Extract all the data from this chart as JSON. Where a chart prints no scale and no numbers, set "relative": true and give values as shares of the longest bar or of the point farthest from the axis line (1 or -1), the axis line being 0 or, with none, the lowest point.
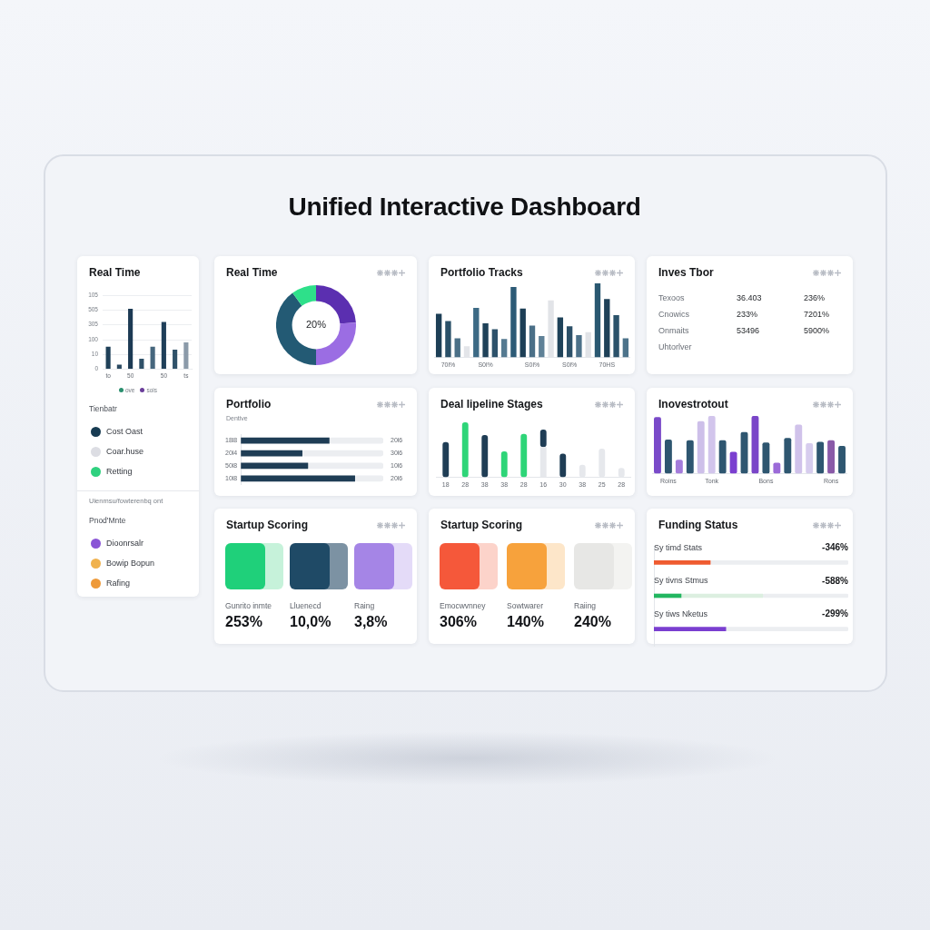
{
  "chart_data": [
    {
      "type": "other",
      "title": "Unified Interactive Dashboard"
    },
    {
      "type": "bar",
      "title": "Real Time",
      "relative": true,
      "categories": [
        "to",
        null,
        "50",
        null,
        null,
        "50",
        null,
        "ts"
      ],
      "values": [
        0.37,
        0.07,
        1,
        0.17,
        0.37,
        0.78,
        0.32,
        0.44
      ],
      "colors": [
        "#1f4058",
        "#2b4a62",
        "#1c3a54",
        "#2e5068",
        "#46667d",
        "#1f3f59",
        "#2f5169",
        "#8b9aa9"
      ],
      "grid": "y",
      "annotations": [
        "105",
        "505",
        "305",
        "100",
        "10",
        "0"
      ]
    },
    {
      "type": "other",
      "categories": [
        "ove",
        "sois"
      ],
      "colors": [
        "#2a8f6e",
        "#6a3d9a"
      ]
    },
    {
      "type": "other",
      "title": "Tienbatr",
      "categories": [
        "Cost Oast",
        "Coar.huse",
        "Retting"
      ],
      "colors": [
        "#173b52",
        "#dcdde3",
        "#2fd17f"
      ]
    },
    {
      "type": "other",
      "title": "Pnod'Mnte",
      "annotations": [
        "Uienmsu/fowterenbq ont"
      ],
      "categories": [
        "Dioonrsalr",
        "Bowip Bopun",
        "Rafing"
      ],
      "colors": [
        "#8a55d6",
        "#f0b24e",
        "#ee9a3a"
      ]
    },
    {
      "type": "donut",
      "title": "Real Time",
      "categories": [
        null,
        null,
        null,
        null
      ],
      "values": [
        24,
        26,
        40,
        10
      ],
      "colors": [
        "#5b2fb0",
        "#9b6de3",
        "#235a74",
        "#2ee08a"
      ],
      "annotations": [
        "20%"
      ]
    },
    {
      "type": "bar",
      "title": "Portfolio Tracks",
      "relative": true,
      "categories": [
        null,
        "70l%",
        null,
        null,
        null,
        "S0l%",
        null,
        null,
        null,
        null,
        "S0l%",
        null,
        null,
        null,
        "S0l%",
        null,
        null,
        null,
        "70HS",
        null,
        null
      ],
      "values": [
        0.59,
        0.49,
        0.26,
        0.15,
        0.67,
        0.46,
        0.38,
        0.25,
        0.95,
        0.66,
        0.43,
        0.29,
        0.77,
        0.54,
        0.42,
        0.3,
        0.34,
        1,
        0.79,
        0.57,
        0.26
      ],
      "colors": [
        "#1d3f56",
        "#2a5068",
        "#4b7087",
        "#e3e5e9",
        "#3d6a85",
        "#1f4259",
        "#2d526b",
        "#557a91",
        "#2c5a76",
        "#1d3f56",
        "#4a6f87",
        "#5f8197",
        "#e2e4e8",
        "#1f4259",
        "#2c5068",
        "#4d7189",
        "#e1e3e7",
        "#2a5871",
        "#1e4158",
        "#2b526a",
        "#4d738a"
      ]
    },
    {
      "type": "other",
      "title": "Inves Tbor",
      "annotations": [
        "Texoos",
        "36.403",
        "236%",
        "Cnowics",
        "233%",
        "7201%",
        "Onmaits",
        "53496",
        "5900%",
        "Uhtorlver"
      ]
    },
    {
      "type": "bar",
      "title": "Portfolio",
      "subtitle": "Dentive",
      "orientation": "horizontal",
      "stacked": true,
      "relative": true,
      "categories": [
        "18l8",
        "20l4",
        "50l8",
        "10l8"
      ],
      "series": [
        {
          "color": "#1f3d55",
          "values": [
            0.62,
            0.43,
            0.47,
            0.8
          ]
        },
        {
          "color": "#eceef1",
          "values": [
            0.38,
            0.57,
            0.53,
            0.2
          ]
        }
      ],
      "annotations": [
        "20l6",
        "30l6",
        "10l6",
        "20l6"
      ]
    },
    {
      "type": "bar",
      "title": "Deal Iipeline Stages",
      "relative": true,
      "stacked": true,
      "categories": [
        "18",
        "28",
        "38",
        "38",
        "28",
        "16",
        "30",
        "38",
        "25",
        "28"
      ],
      "series": [
        {
          "colors": [
            "#1f3d55",
            "#2ed578",
            "#1f3d55",
            "#2ed578",
            "#2ed578",
            "#e6e8ec",
            "#1f3d55",
            "#e6e8ec",
            "#e6e8ec",
            "#e6e8ec"
          ],
          "values": [
            0.64,
            1,
            0.77,
            0.47,
            0.79,
            0.55,
            0.43,
            0.23,
            0.52,
            0.17
          ]
        },
        {
          "color": "#1f3d55",
          "values": [
            null,
            null,
            null,
            null,
            null,
            0.32,
            null,
            null,
            null,
            null
          ]
        }
      ]
    },
    {
      "type": "bar",
      "title": "Inovestrotout",
      "relative": true,
      "categories": [
        null,
        "Roins",
        null,
        null,
        null,
        "Tonk",
        null,
        null,
        null,
        null,
        "Bons",
        null,
        null,
        null,
        null,
        null,
        "Rons",
        null
      ],
      "values": [
        0.98,
        0.59,
        0.24,
        0.58,
        0.91,
        1,
        0.58,
        0.38,
        0.72,
        1,
        0.54,
        0.19,
        0.62,
        0.85,
        0.53,
        0.55,
        0.58,
        0.48
      ],
      "colors": [
        "#7a4ac9",
        "#2e5670",
        "#a47cdb",
        "#2e5670",
        "#cdbfe9",
        "#d2c5ec",
        "#2e5670",
        "#7b3fd0",
        "#2e5670",
        "#7a45c8",
        "#2e5670",
        "#9b6ad8",
        "#2e5670",
        "#d0c2ea",
        "#d7cdee",
        "#2e5670",
        "#8a5aa8",
        "#2e5670"
      ]
    },
    {
      "type": "other",
      "title": "Startup Scoring",
      "categories": [
        "Gunrito inmte",
        "Lluenecd",
        "Raing"
      ],
      "annotations": [
        "253%",
        "10,0%",
        "3,8%"
      ]
    },
    {
      "type": "other",
      "title": "Startup Scoring",
      "categories": [
        "Emocwvnney",
        "Sowtwarer",
        "Raiing"
      ],
      "annotations": [
        "306%",
        "140%",
        "240%"
      ]
    },
    {
      "type": "bar",
      "title": "Funding Status",
      "orientation": "horizontal",
      "stacked": true,
      "relative": true,
      "categories": [
        "Sy timd Stats",
        "Sy tivns Stmus",
        "Sy tiws Nketus"
      ],
      "series": [
        {
          "colors": [
            "#ef5b30",
            "#22b660",
            "#7a3fd0"
          ],
          "values": [
            0.29,
            0.14,
            0.37
          ]
        },
        {
          "color": "#dcefe0",
          "values": [
            null,
            0.42,
            null
          ]
        },
        {
          "color": "#eceef1",
          "values": [
            0.71,
            0.44,
            0.63
          ]
        }
      ],
      "annotations": [
        "-346%",
        "-588%",
        "-299%"
      ]
    }
  ]
}
